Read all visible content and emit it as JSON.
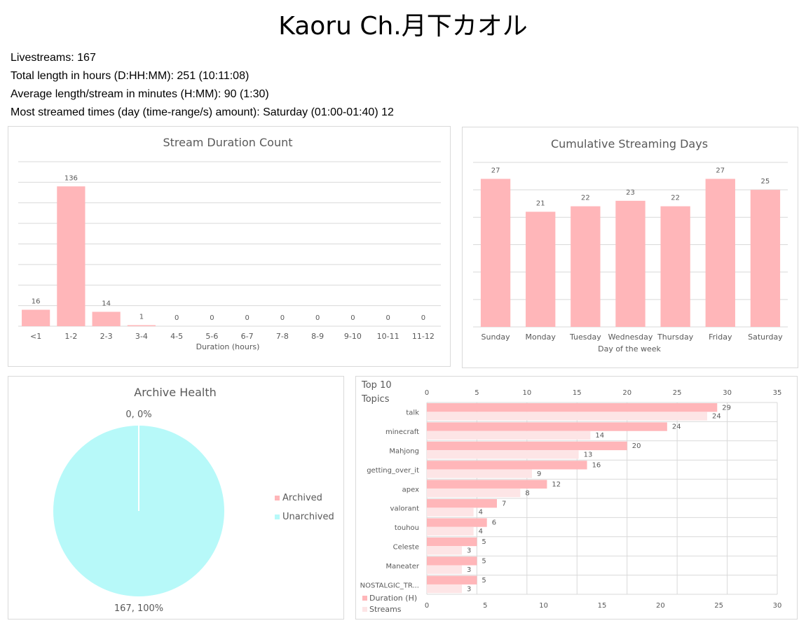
{
  "title": "Kaoru Ch.月下カオル",
  "stats": {
    "livestreams": "Livestreams: 167",
    "total_length": "Total length in hours (D:HH:MM): 251 (10:11:08)",
    "average_length": "Average length/stream in minutes (H:MM): 90 (1:30)",
    "most_streamed": "Most streamed times (day (time-range/s) amount): Saturday (01:00-01:40) 12"
  },
  "colors": {
    "pink": "#ffb6b9",
    "light_pink": "#fde5e6",
    "cyan": "#b7f9f9",
    "grid": "#d9d9d9",
    "text": "#595959"
  },
  "chart_data": [
    {
      "type": "bar",
      "title": "Stream Duration Count",
      "xlabel": "Duration (hours)",
      "ylabel": "",
      "categories": [
        "<1",
        "1-2",
        "2-3",
        "3-4",
        "4-5",
        "5-6",
        "6-7",
        "7-8",
        "8-9",
        "9-10",
        "10-11",
        "11-12"
      ],
      "values": [
        16,
        136,
        14,
        1,
        0,
        0,
        0,
        0,
        0,
        0,
        0,
        0
      ],
      "ylim": [
        0,
        160
      ],
      "grid": true,
      "data_labels": true
    },
    {
      "type": "bar",
      "title": "Cumulative Streaming Days",
      "xlabel": "Day of the week",
      "ylabel": "",
      "categories": [
        "Sunday",
        "Monday",
        "Tuesday",
        "Wednesday",
        "Thursday",
        "Friday",
        "Saturday"
      ],
      "values": [
        27,
        21,
        22,
        23,
        22,
        27,
        25
      ],
      "ylim": [
        0,
        30
      ],
      "grid": true,
      "data_labels": true
    },
    {
      "type": "pie",
      "title": "Archive Health",
      "labels": [
        "Archived",
        "Unarchived"
      ],
      "values": [
        0,
        167
      ],
      "data_labels": [
        "0, 0%",
        "167, 100%"
      ],
      "legend": "right"
    },
    {
      "type": "bar",
      "orientation": "horizontal",
      "title": "Top 10 Topics",
      "categories": [
        "talk",
        "minecraft",
        "Mahjong",
        "getting_over_it",
        "apex",
        "valorant",
        "touhou",
        "Celeste",
        "Maneater",
        "NOSTALGIC_TR..."
      ],
      "series": [
        {
          "name": "Duration (H)",
          "axis": "top",
          "values": [
            29,
            24,
            20,
            16,
            12,
            7,
            6,
            5,
            5,
            5
          ]
        },
        {
          "name": "Streams",
          "axis": "bottom",
          "values": [
            24,
            14,
            13,
            9,
            8,
            4,
            4,
            3,
            3,
            3
          ]
        }
      ],
      "top_axis": {
        "range": [
          0,
          35
        ],
        "ticks": [
          "0",
          "5",
          "10",
          "15",
          "20",
          "25",
          "30",
          "35"
        ]
      },
      "bottom_axis": {
        "range": [
          0,
          30
        ],
        "ticks": [
          "0",
          "5",
          "10",
          "15",
          "20",
          "25",
          "30"
        ]
      },
      "legend": "bottom-left",
      "grid": true,
      "data_labels": true
    }
  ]
}
